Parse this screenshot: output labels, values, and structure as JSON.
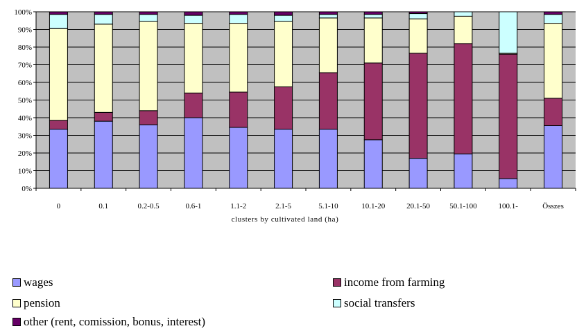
{
  "chart_data": {
    "type": "bar",
    "stacked": true,
    "title": "",
    "xlabel": "clusters by cultivated land (ha)",
    "ylabel": "",
    "ylim": [
      0,
      100
    ],
    "y_ticks": [
      "0%",
      "10%",
      "20%",
      "30%",
      "40%",
      "50%",
      "60%",
      "70%",
      "80%",
      "90%",
      "100%"
    ],
    "grid": "horizontal",
    "legend_position": "bottom",
    "categories": [
      "0",
      "0.1",
      "0.2-0.5",
      "0.6-1",
      "1.1-2",
      "2.1-5",
      "5.1-10",
      "10.1-20",
      "20.1-50",
      "50.1-100",
      "100.1-",
      "Összes"
    ],
    "series": [
      {
        "name": "wages",
        "color": "#9999ff",
        "values": [
          33.5,
          38,
          36,
          40,
          34.5,
          33.5,
          33.5,
          27.5,
          17,
          19.5,
          5.5,
          35.5
        ]
      },
      {
        "name": "income from farming",
        "color": "#993366",
        "values": [
          5,
          5,
          8,
          14,
          20,
          24,
          32,
          43.5,
          59.5,
          62.5,
          70.5,
          15.5
        ]
      },
      {
        "name": "pension",
        "color": "#ffffcc",
        "values": [
          52,
          50,
          50.5,
          39.5,
          39,
          37,
          31,
          25.5,
          19.5,
          15.5,
          0.5,
          42.5
        ]
      },
      {
        "name": "social transfers",
        "color": "#ccffff",
        "values": [
          8,
          5.5,
          4,
          4.5,
          5,
          3.5,
          2,
          2,
          3,
          2.5,
          23.5,
          5
        ]
      },
      {
        "name": "other (rent, comission, bonus, interest)",
        "color": "#660066",
        "values": [
          1.5,
          1.5,
          1.5,
          2,
          1.5,
          2,
          1.5,
          1.5,
          1,
          0,
          0,
          1.5
        ]
      }
    ]
  },
  "colors": {
    "plot_background": "#c0c0c0",
    "gridline": "#000000"
  }
}
